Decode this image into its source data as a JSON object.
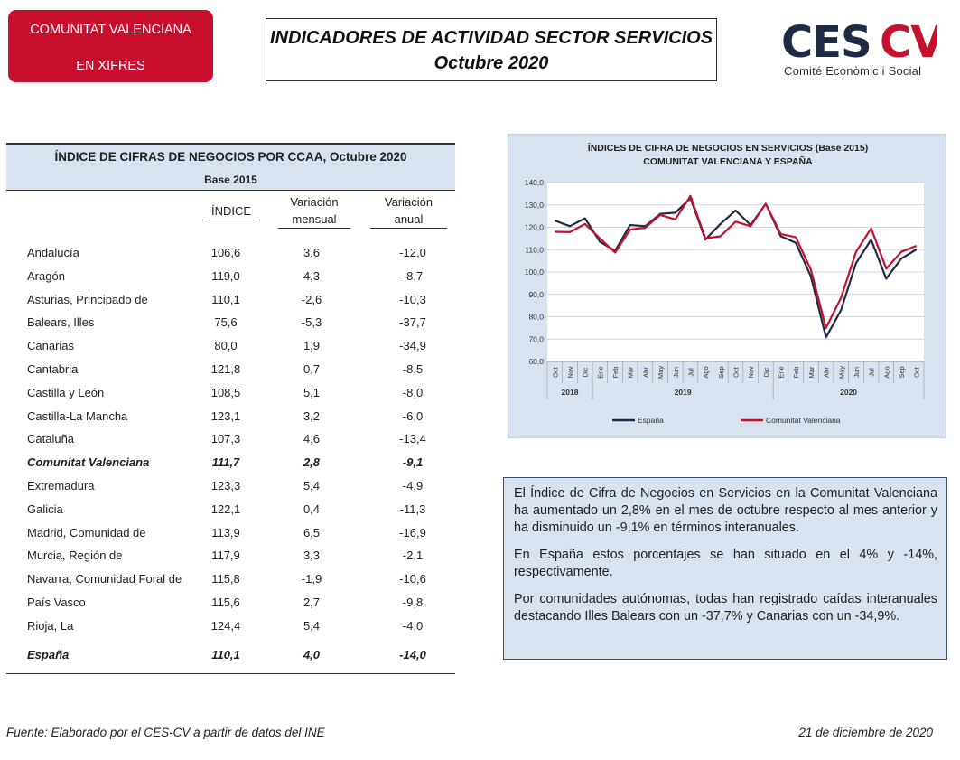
{
  "badge": {
    "line1": "COMUNITAT VALENCIANA",
    "line2": "EN XIFRES"
  },
  "title": {
    "line1": "INDICADORES DE ACTIVIDAD SECTOR SERVICIOS",
    "line2": "Octubre 2020"
  },
  "logo": {
    "mark": "CESCV",
    "subtitle": "Comité Econòmic i Social",
    "mark_color": "#1f2a44",
    "accent_color": "#c8102e"
  },
  "table": {
    "title": "ÍNDICE DE CIFRAS DE NEGOCIOS POR CCAA, Octubre 2020",
    "base": "Base 2015",
    "columns": {
      "indice": "ÍNDICE",
      "var_mensual_1": "Variación",
      "var_mensual_2": "mensual",
      "var_anual_1": "Variación",
      "var_anual_2": "anual"
    },
    "rows": [
      {
        "name": "Andalucía",
        "indice": "106,6",
        "mensual": "3,6",
        "anual": "-12,0"
      },
      {
        "name": "Aragón",
        "indice": "119,0",
        "mensual": "4,3",
        "anual": "-8,7"
      },
      {
        "name": "Asturias, Principado de",
        "indice": "110,1",
        "mensual": "-2,6",
        "anual": "-10,3"
      },
      {
        "name": "Balears, Illes",
        "indice": "75,6",
        "mensual": "-5,3",
        "anual": "-37,7"
      },
      {
        "name": "Canarias",
        "indice": "80,0",
        "mensual": "1,9",
        "anual": "-34,9"
      },
      {
        "name": "Cantabria",
        "indice": "121,8",
        "mensual": "0,7",
        "anual": "-8,5"
      },
      {
        "name": "Castilla y León",
        "indice": "108,5",
        "mensual": "5,1",
        "anual": "-8,0"
      },
      {
        "name": "Castilla-La Mancha",
        "indice": "123,1",
        "mensual": "3,2",
        "anual": "-6,0"
      },
      {
        "name": "Cataluña",
        "indice": "107,3",
        "mensual": "4,6",
        "anual": "-13,4"
      },
      {
        "name": "Comunitat Valenciana",
        "indice": "111,7",
        "mensual": "2,8",
        "anual": "-9,1",
        "bold": true
      },
      {
        "name": "Extremadura",
        "indice": "123,3",
        "mensual": "5,4",
        "anual": "-4,9"
      },
      {
        "name": "Galicia",
        "indice": "122,1",
        "mensual": "0,4",
        "anual": "-11,3"
      },
      {
        "name": "Madrid, Comunidad de",
        "indice": "113,9",
        "mensual": "6,5",
        "anual": "-16,9"
      },
      {
        "name": "Murcia, Región de",
        "indice": "117,9",
        "mensual": "3,3",
        "anual": "-2,1"
      },
      {
        "name": "Navarra, Comunidad Foral de",
        "indice": "115,8",
        "mensual": "-1,9",
        "anual": "-10,6"
      },
      {
        "name": "País Vasco",
        "indice": "115,6",
        "mensual": "2,7",
        "anual": "-9,8"
      },
      {
        "name": "Rioja, La",
        "indice": "124,4",
        "mensual": "5,4",
        "anual": "-4,0"
      },
      {
        "name": "España",
        "indice": "110,1",
        "mensual": "4,0",
        "anual": "-14,0",
        "bold": true
      }
    ]
  },
  "chart_data": {
    "type": "line",
    "title": "ÍNDICES DE CIFRA DE NEGOCIOS EN SERVICIOS (Base 2015)",
    "subtitle": "COMUNITAT VALENCIANA Y ESPAÑA",
    "x": [
      "Oct",
      "Nov",
      "Dic",
      "Ene",
      "Feb",
      "Mar",
      "Abr",
      "May",
      "Jun",
      "Jul",
      "Ago",
      "Sep",
      "Oct",
      "Nov",
      "Dic",
      "Ene",
      "Feb",
      "Mar",
      "Abr",
      "May",
      "Jun",
      "Jul",
      "Ago",
      "Sep",
      "Oct"
    ],
    "year_groups": [
      {
        "label": "2018",
        "start": 0,
        "end": 2
      },
      {
        "label": "2019",
        "start": 3,
        "end": 14
      },
      {
        "label": "2020",
        "start": 15,
        "end": 24
      }
    ],
    "yticks": [
      "60,0",
      "70,0",
      "80,0",
      "90,0",
      "100,0",
      "110,0",
      "120,0",
      "130,0",
      "140,0"
    ],
    "ylim": [
      60,
      140
    ],
    "series": [
      {
        "name": "España",
        "color": "#1f2a44",
        "values": [
          123.0,
          120.5,
          124.0,
          113.5,
          109.5,
          121.0,
          120.5,
          126.0,
          126.5,
          133.0,
          114.5,
          121.5,
          127.5,
          121.0,
          130.5,
          116.0,
          113.0,
          98.0,
          70.8,
          83.0,
          104.0,
          114.5,
          97.0,
          106.0,
          110.1
        ]
      },
      {
        "name": "Comunitat Valenciana",
        "color": "#c8102e",
        "values": [
          118.0,
          117.8,
          121.5,
          115.0,
          108.7,
          119.0,
          119.8,
          125.5,
          123.5,
          134.0,
          115.0,
          116.0,
          122.5,
          120.5,
          130.5,
          117.0,
          115.5,
          101.0,
          75.0,
          88.5,
          109.0,
          119.5,
          101.5,
          109.0,
          111.7
        ]
      }
    ],
    "legend": "bottom",
    "grid": true
  },
  "summary": {
    "p1": "El Índice de Cifra de Negocios en Servicios en la Comunitat Valenciana ha aumentado un 2,8% en el mes de octubre respecto al mes anterior y ha disminuido un -9,1% en términos interanuales.",
    "p2": "En España estos porcentajes se han situado en el 4% y -14%, respectivamente.",
    "p3": "Por comunidades autónomas, todas han registrado caídas interanuales destacando Illes Balears con un -37,7% y Canarias con un -34,9%."
  },
  "footer": {
    "source": "Fuente: Elaborado por el CES-CV a partir de datos del INE",
    "date": "21 de diciembre de 2020"
  }
}
